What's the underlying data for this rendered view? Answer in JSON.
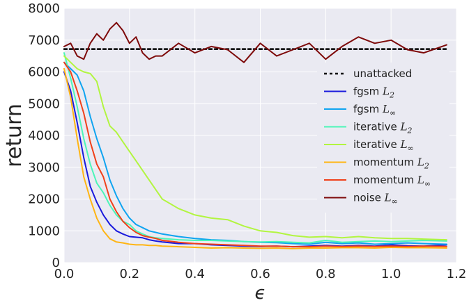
{
  "chart_data": {
    "type": "line",
    "xlabel": "ϵ",
    "ylabel": "return",
    "xlim": [
      0.0,
      1.2
    ],
    "ylim": [
      0,
      8000
    ],
    "xticks": [
      0.0,
      0.2,
      0.4,
      0.6,
      0.8,
      1.0,
      1.2
    ],
    "xtick_labels": [
      "0.0",
      "0.2",
      "0.4",
      "0.6",
      "0.8",
      "1.0",
      "1.2"
    ],
    "yticks": [
      0,
      1000,
      2000,
      3000,
      4000,
      5000,
      6000,
      7000,
      8000
    ],
    "ytick_labels": [
      "0",
      "1000",
      "2000",
      "3000",
      "4000",
      "5000",
      "6000",
      "7000",
      "8000"
    ],
    "grid": true,
    "legend_position": "right",
    "x": [
      0.0,
      0.02,
      0.04,
      0.06,
      0.08,
      0.1,
      0.12,
      0.14,
      0.16,
      0.18,
      0.2,
      0.22,
      0.24,
      0.26,
      0.28,
      0.3,
      0.35,
      0.4,
      0.45,
      0.5,
      0.55,
      0.6,
      0.65,
      0.7,
      0.75,
      0.8,
      0.85,
      0.9,
      0.95,
      1.0,
      1.05,
      1.1,
      1.17
    ],
    "series": [
      {
        "name": "unattacked",
        "name_base": "unattacked",
        "name_sub": "",
        "color": "#000000",
        "dash": "4,4",
        "width": 2.5,
        "values": [
          6720,
          6720,
          6720,
          6720,
          6720,
          6720,
          6720,
          6720,
          6720,
          6720,
          6720,
          6720,
          6720,
          6720,
          6720,
          6720,
          6720,
          6720,
          6720,
          6720,
          6720,
          6720,
          6720,
          6720,
          6720,
          6720,
          6720,
          6720,
          6720,
          6720,
          6720,
          6720,
          6720
        ]
      },
      {
        "name": "fgsm L2",
        "name_base": "fgsm ",
        "name_sub": "2",
        "color": "#1a1adc",
        "width": 2,
        "values": [
          6000,
          5400,
          4400,
          3300,
          2400,
          1900,
          1500,
          1200,
          1000,
          900,
          820,
          800,
          780,
          720,
          680,
          650,
          600,
          600,
          560,
          540,
          520,
          510,
          520,
          500,
          520,
          540,
          520,
          540,
          520,
          560,
          530,
          520,
          560
        ]
      },
      {
        "name": "fgsm L∞",
        "name_base": "fgsm ",
        "name_sub": "∞",
        "color": "#0fa4f0",
        "width": 2,
        "values": [
          6300,
          6100,
          5900,
          5400,
          4600,
          3900,
          3300,
          2600,
          2100,
          1700,
          1400,
          1200,
          1100,
          1000,
          950,
          900,
          820,
          760,
          720,
          700,
          660,
          640,
          630,
          600,
          580,
          640,
          600,
          620,
          580,
          600,
          620,
          600,
          580
        ]
      },
      {
        "name": "iterative L2",
        "name_base": "iterative ",
        "name_sub": "2",
        "color": "#4cf5b8",
        "width": 2,
        "values": [
          6600,
          5800,
          4900,
          3900,
          3100,
          2500,
          2200,
          1800,
          1500,
          1300,
          1200,
          1000,
          900,
          820,
          780,
          760,
          720,
          700,
          700,
          680,
          660,
          650,
          660,
          640,
          620,
          700,
          640,
          660,
          680,
          660,
          680,
          700,
          680
        ]
      },
      {
        "name": "iterative L∞",
        "name_base": "iterative ",
        "name_sub": "∞",
        "color": "#b2f540",
        "width": 2,
        "values": [
          6500,
          6300,
          6100,
          6000,
          5950,
          5700,
          4900,
          4300,
          4100,
          3800,
          3500,
          3200,
          2900,
          2600,
          2300,
          2000,
          1700,
          1500,
          1400,
          1350,
          1150,
          1000,
          950,
          850,
          800,
          820,
          780,
          820,
          780,
          760,
          760,
          740,
          720
        ]
      },
      {
        "name": "momentum L2",
        "name_base": "momentum ",
        "name_sub": "2",
        "color": "#ffb514",
        "width": 2,
        "values": [
          6100,
          5200,
          3900,
          2700,
          2000,
          1400,
          1000,
          750,
          650,
          620,
          580,
          560,
          560,
          540,
          540,
          520,
          500,
          480,
          460,
          470,
          460,
          450,
          460,
          440,
          460,
          460,
          470,
          470,
          460,
          480,
          470,
          470,
          460
        ]
      },
      {
        "name": "momentum L∞",
        "name_base": "momentum ",
        "name_sub": "∞",
        "color": "#f0401a",
        "width": 2,
        "values": [
          6300,
          6000,
          5400,
          4700,
          3800,
          3100,
          2700,
          2000,
          1600,
          1300,
          1100,
          950,
          850,
          800,
          760,
          700,
          640,
          600,
          580,
          560,
          540,
          520,
          520,
          500,
          500,
          520,
          510,
          520,
          510,
          520,
          510,
          520,
          510
        ]
      },
      {
        "name": "noise L∞",
        "name_base": "noise ",
        "name_sub": "∞",
        "color": "#7e0a0a",
        "width": 2,
        "values": [
          6800,
          6900,
          6500,
          6400,
          6900,
          7200,
          7000,
          7350,
          7550,
          7300,
          6900,
          7100,
          6600,
          6400,
          6500,
          6500,
          6900,
          6600,
          6800,
          6700,
          6300,
          6900,
          6500,
          6700,
          6900,
          6400,
          6800,
          7100,
          6900,
          7000,
          6700,
          6600,
          6850
        ]
      }
    ]
  }
}
